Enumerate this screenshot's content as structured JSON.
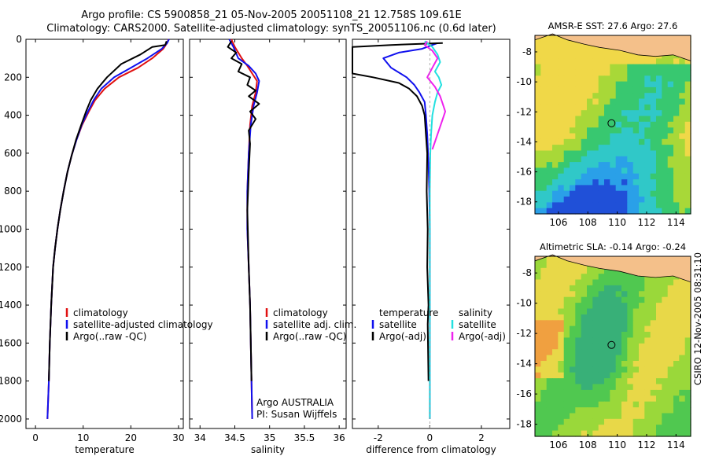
{
  "title": {
    "line1": "Argo profile: CS 5900858_21 05-Nov-2005 20051108_21 12.758S 109.61E",
    "line2": "Climatology: CARS2000. Satellite-adjusted climatology: synTS_20051106.nc (0.6d later)"
  },
  "timestamp": "CSIRO 12-Nov-2005 08:31:10",
  "colors": {
    "climatology": "#e01010",
    "satellite": "#1010ee",
    "argo": "#000000",
    "satellite_salinity": "#22e0e0",
    "argo_adj_salinity": "#ee22ee",
    "land": "#f4c08a"
  },
  "chart_data": [
    {
      "type": "line",
      "name": "temperature-profile",
      "xlabel": "temperature",
      "ylabel": "",
      "xlim": [
        -2,
        31
      ],
      "ylim": [
        2050,
        0
      ],
      "xticks": [
        0,
        10,
        20,
        30
      ],
      "yticks": [
        0,
        200,
        400,
        600,
        800,
        1000,
        1200,
        1400,
        1600,
        1800,
        2000
      ],
      "legend": [
        "climatology",
        "satellite-adjusted climatology",
        "Argo(..raw -QC)"
      ],
      "series": [
        {
          "name": "climatology",
          "color_key": "climatology",
          "x": [
            27.9,
            27.6,
            26.8,
            24.5,
            21.5,
            17.5,
            14.5,
            12.5,
            11.2,
            9.8,
            8.6,
            7.6,
            6.7,
            5.9,
            5.2,
            4.6,
            4.1,
            3.7,
            3.3,
            3.0,
            2.8,
            2.5
          ],
          "y": [
            0,
            20,
            50,
            100,
            150,
            200,
            260,
            320,
            380,
            450,
            530,
            610,
            700,
            800,
            900,
            1000,
            1100,
            1200,
            1400,
            1600,
            1800,
            2000
          ]
        },
        {
          "name": "satellite-adjusted climatology",
          "color_key": "satellite",
          "x": [
            28.0,
            27.6,
            26.5,
            23.5,
            20.0,
            16.5,
            13.8,
            12.2,
            11.0,
            9.7,
            8.6,
            7.6,
            6.7,
            5.9,
            5.2,
            4.6,
            4.1,
            3.7,
            3.3,
            3.0,
            2.8,
            2.5
          ],
          "y": [
            0,
            20,
            50,
            100,
            150,
            200,
            260,
            320,
            380,
            450,
            530,
            610,
            700,
            800,
            900,
            1000,
            1100,
            1200,
            1400,
            1600,
            1800,
            2000
          ]
        },
        {
          "name": "Argo(..raw -QC)",
          "color_key": "argo",
          "x": [
            27.5,
            27.2,
            24.5,
            22.0,
            18.0,
            15.0,
            13.0,
            11.6,
            10.6,
            9.6,
            8.5,
            7.6,
            6.7,
            5.9,
            5.2,
            4.6,
            4.1,
            3.7,
            3.3,
            3.0,
            2.8
          ],
          "y": [
            10,
            30,
            40,
            80,
            130,
            200,
            260,
            320,
            380,
            450,
            530,
            610,
            700,
            800,
            900,
            1000,
            1100,
            1200,
            1400,
            1600,
            1800
          ]
        }
      ]
    },
    {
      "type": "line",
      "name": "salinity-profile",
      "xlabel": "salinity",
      "ylabel": "",
      "xlim": [
        33.85,
        36.1
      ],
      "ylim": [
        2050,
        0
      ],
      "xticks": [
        34,
        34.5,
        35,
        35.5,
        36
      ],
      "xtick_labels": [
        "34",
        "34.5",
        "35",
        "35.5",
        "36"
      ],
      "legend": [
        "climatology",
        "satellite adj. clim.",
        "Argo(..raw -QC)"
      ],
      "annotations": [
        "Argo AUSTRALIA",
        "PI: Susan Wijffels"
      ],
      "series": [
        {
          "name": "climatology",
          "color_key": "climatology",
          "x": [
            34.45,
            34.5,
            34.6,
            34.68,
            34.75,
            34.82,
            34.8,
            34.75,
            34.72,
            34.7,
            34.68,
            34.68,
            34.7,
            34.72,
            34.73,
            34.74,
            34.75
          ],
          "y": [
            0,
            40,
            100,
            140,
            180,
            220,
            280,
            350,
            450,
            600,
            800,
            1000,
            1200,
            1400,
            1600,
            1800,
            2000
          ]
        },
        {
          "name": "satellite adj. clim.",
          "color_key": "satellite",
          "x": [
            34.42,
            34.48,
            34.55,
            34.7,
            34.8,
            34.85,
            34.82,
            34.77,
            34.73,
            34.7,
            34.68,
            34.68,
            34.7,
            34.72,
            34.73,
            34.74,
            34.75
          ],
          "y": [
            0,
            40,
            100,
            140,
            180,
            220,
            280,
            350,
            450,
            600,
            800,
            1000,
            1200,
            1400,
            1600,
            1800,
            2000
          ]
        },
        {
          "name": "Argo(..raw -QC)",
          "color_key": "argo",
          "x": [
            34.45,
            34.4,
            34.52,
            34.45,
            34.6,
            34.55,
            34.72,
            34.68,
            34.8,
            34.7,
            34.85,
            34.72,
            34.8,
            34.7,
            34.72,
            34.7,
            34.68,
            34.7,
            34.72,
            34.73,
            34.74
          ],
          "y": [
            10,
            40,
            70,
            100,
            130,
            170,
            200,
            240,
            270,
            300,
            340,
            380,
            420,
            480,
            550,
            700,
            900,
            1200,
            1400,
            1600,
            1800
          ]
        }
      ]
    },
    {
      "type": "line",
      "name": "difference-profile",
      "xlabel": "difference from climatology",
      "ylabel": "",
      "xlim": [
        -3,
        3.1
      ],
      "ylim": [
        2050,
        0
      ],
      "xticks": [
        -2,
        0,
        2
      ],
      "legend_temperature": [
        "temperature",
        "satellite",
        "Argo(-adj)"
      ],
      "legend_salinity": [
        "salinity",
        "satellite",
        "Argo(-adj)"
      ],
      "series": [
        {
          "name": "temperature satellite",
          "color_key": "satellite",
          "x": [
            0.3,
            -0.3,
            -1.2,
            -1.8,
            -1.5,
            -0.9,
            -0.6,
            -0.4,
            -0.2,
            -0.15,
            -0.1,
            -0.05,
            -0.02,
            0,
            0,
            0,
            0
          ],
          "y": [
            20,
            50,
            70,
            100,
            150,
            200,
            240,
            280,
            330,
            400,
            500,
            650,
            800,
            1000,
            1400,
            1800,
            2000
          ]
        },
        {
          "name": "temperature Argo(-adj)",
          "color_key": "argo",
          "x": [
            0.5,
            -1.5,
            -3,
            -3,
            -2.2,
            -1.2,
            -0.8,
            -0.5,
            -0.3,
            -0.2,
            -0.15,
            -0.1,
            -0.12,
            -0.08,
            -0.1,
            -0.05,
            -0.08,
            -0.05
          ],
          "y": [
            20,
            30,
            40,
            180,
            200,
            230,
            260,
            300,
            350,
            400,
            500,
            600,
            800,
            1000,
            1200,
            1400,
            1500,
            1800
          ]
        },
        {
          "name": "salinity satellite",
          "color_key": "satellite_salinity",
          "x": [
            -0.2,
            0.1,
            0.3,
            0.4,
            0.2,
            0.35,
            0.45,
            0.3,
            0.2,
            0.1,
            0.05,
            0.02,
            0,
            0,
            0
          ],
          "y": [
            10,
            40,
            80,
            120,
            170,
            200,
            240,
            280,
            330,
            400,
            500,
            600,
            800,
            1200,
            2000
          ]
        },
        {
          "name": "salinity Argo(-adj)",
          "color_key": "argo_adj_salinity",
          "x": [
            -0.1,
            -0.2,
            0.1,
            0.3,
            0.1,
            -0.1,
            0.2,
            0.4,
            0.5,
            0.6,
            0.5,
            0.4,
            0.3,
            0.2,
            0.1
          ],
          "y": [
            10,
            30,
            60,
            100,
            150,
            200,
            250,
            300,
            340,
            380,
            420,
            460,
            500,
            540,
            580
          ]
        }
      ]
    },
    {
      "type": "heatmap",
      "name": "sst-map",
      "title": "AMSR-E SST: 27.6 Argo: 27.6",
      "xlim": [
        104.4,
        115
      ],
      "ylim": [
        -18.8,
        -6.9
      ],
      "xticks": [
        106,
        108,
        110,
        112,
        114
      ],
      "yticks": [
        -8,
        -10,
        -12,
        -14,
        -16,
        -18
      ],
      "marker": {
        "lon": 109.61,
        "lat": -12.758
      }
    },
    {
      "type": "heatmap",
      "name": "sla-map",
      "title": "Altimetric SLA: -0.14 Argo: -0.24",
      "xlim": [
        104.4,
        115
      ],
      "ylim": [
        -18.8,
        -6.9
      ],
      "xticks": [
        106,
        108,
        110,
        112,
        114
      ],
      "yticks": [
        -8,
        -10,
        -12,
        -14,
        -16,
        -18
      ],
      "marker": {
        "lon": 109.61,
        "lat": -12.758
      }
    }
  ]
}
